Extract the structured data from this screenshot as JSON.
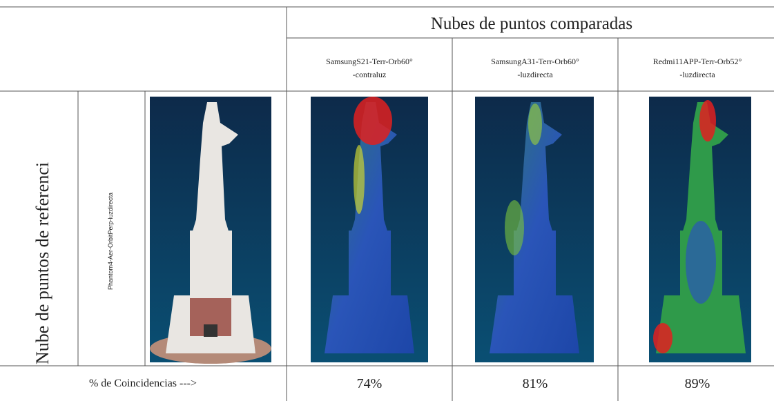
{
  "table": {
    "title": "Nubes de puntos comparadas",
    "columns": [
      {
        "lines": [
          "SamsungS21-Terr-Orb60°",
          "-contraluz"
        ]
      },
      {
        "lines": [
          "SamsungA31-Terr-Orb60°",
          "-luzdirecta"
        ]
      },
      {
        "lines": [
          "Redmi11APP-Terr-Orb52°",
          "-luzdirecta"
        ]
      }
    ],
    "row_label": "Nube de puntos de referenci",
    "reference": "Phantom4-Aer-OrbitPerp-luzdirecta",
    "footer_label": "% de Coincidencias --->",
    "results": [
      "74%",
      "81%",
      "89%"
    ]
  }
}
